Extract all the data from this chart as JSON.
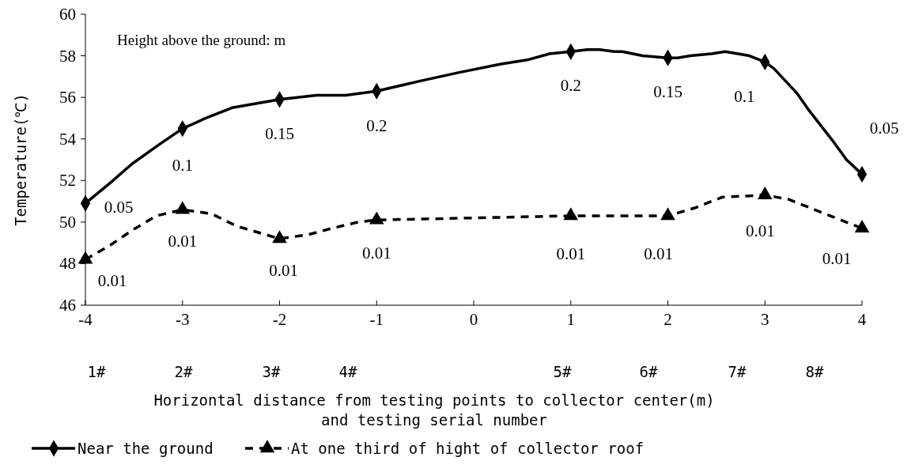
{
  "chart_data": {
    "type": "line",
    "ylabel": "Temperature(℃)",
    "xlabel": "Horizontal distance from testing points to collector center(m)\nand testing serial number",
    "xlim": [
      -4,
      4
    ],
    "xticks": [
      -4,
      -3,
      -2,
      -1,
      0,
      1,
      2,
      3,
      4
    ],
    "ylim": [
      46,
      60
    ],
    "yticks": [
      46,
      48,
      50,
      52,
      54,
      56,
      58,
      60
    ],
    "grid": false,
    "legend": "bottom",
    "series": [
      {
        "color": "#000000",
        "line_style": "solid",
        "marker": "none",
        "x": [
          -4,
          -3.74,
          -3.52,
          -3.25,
          -3,
          -2.76,
          -2.49,
          -2,
          -1.62,
          -1.32,
          -1,
          -0.54,
          -0.15,
          0.28,
          0.55,
          0.78,
          1,
          1.17,
          1.3,
          1.45,
          1.53,
          1.74,
          2,
          2.1,
          2.23,
          2.45,
          2.59,
          2.84,
          3,
          3.09,
          3.33,
          3.45,
          3.7,
          3.84,
          4
        ],
        "values": [
          50.9,
          51.9,
          52.8,
          53.7,
          54.5,
          55.0,
          55.5,
          55.9,
          56.1,
          56.1,
          56.3,
          56.8,
          57.2,
          57.6,
          57.8,
          58.1,
          58.2,
          58.3,
          58.3,
          58.2,
          58.2,
          58.0,
          57.9,
          57.9,
          58.0,
          58.1,
          58.2,
          58.0,
          57.7,
          57.4,
          56.2,
          55.4,
          53.9,
          53.0,
          52.3
        ]
      },
      {
        "type": "scatter",
        "name": "Near the ground",
        "color": "#000000",
        "line_style": "solid",
        "marker": "diamond",
        "x": [
          -4,
          -3,
          -2,
          -1,
          1,
          2,
          3,
          4
        ],
        "values": [
          50.9,
          54.5,
          55.9,
          56.3,
          58.2,
          57.9,
          57.7,
          52.3
        ]
      },
      {
        "color": "#000000",
        "line_style": "dashed",
        "marker": "none",
        "x": [
          -4,
          -3.74,
          -3.52,
          -3.27,
          -3,
          -2.7,
          -2.44,
          -2,
          -1.7,
          -1.46,
          -1.19,
          -1,
          1,
          2,
          2.29,
          2.56,
          3,
          3.24,
          3.51,
          4
        ],
        "values": [
          48.2,
          48.9,
          49.6,
          50.3,
          50.6,
          50.4,
          49.8,
          49.2,
          49.4,
          49.7,
          50.0,
          50.1,
          50.3,
          50.3,
          50.7,
          51.2,
          51.3,
          51.1,
          50.6,
          49.7
        ]
      },
      {
        "type": "scatter",
        "name": "At one third of hight of collector roof",
        "color": "#000000",
        "line_style": "dashed",
        "marker": "triangle",
        "x": [
          -4,
          -3,
          -2,
          -1,
          1,
          2,
          3,
          4
        ],
        "values": [
          48.2,
          50.6,
          49.2,
          50.1,
          50.3,
          50.3,
          51.3,
          49.7
        ]
      }
    ],
    "annotations": [
      "Height above the ground: m",
      {
        "text": "0.05",
        "x": -4,
        "y": 50.9
      },
      {
        "text": "0.1",
        "x": -3,
        "y": 54.5
      },
      {
        "text": "0.15",
        "x": -2,
        "y": 55.9
      },
      {
        "text": "0.2",
        "x": -1,
        "y": 56.3
      },
      {
        "text": "0.2",
        "x": 1,
        "y": 58.2
      },
      {
        "text": "0.15",
        "x": 2,
        "y": 57.9
      },
      {
        "text": "0.1",
        "x": 3,
        "y": 57.7
      },
      {
        "text": "0.05",
        "x": 4,
        "y": 52.3
      },
      {
        "text": "0.01",
        "x": -4,
        "y": 48.2
      },
      {
        "text": "0.01",
        "x": -3,
        "y": 50.6
      },
      {
        "text": "0.01",
        "x": -2,
        "y": 49.2
      },
      {
        "text": "0.01",
        "x": -1,
        "y": 50.1
      },
      {
        "text": "0.01",
        "x": 1,
        "y": 50.3
      },
      {
        "text": "0.01",
        "x": 2,
        "y": 50.3
      },
      {
        "text": "0.01",
        "x": 3,
        "y": 51.3
      },
      {
        "text": "0.01",
        "x": 4,
        "y": 49.7
      },
      "1#",
      "2#",
      "3#",
      "4#",
      "5#",
      "6#",
      "7#",
      "8#"
    ]
  }
}
